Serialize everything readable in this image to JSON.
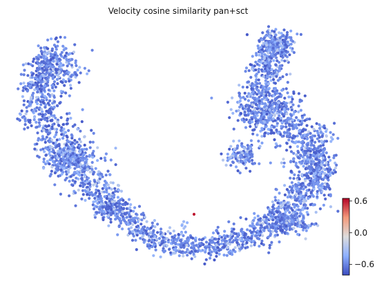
{
  "chart_data": {
    "type": "scatter",
    "title": "Velocity cosine similarity pan+sct",
    "xlabel": "",
    "ylabel": "",
    "axes_visible": false,
    "point_count_approx": 4000,
    "colormap": "coolwarm",
    "color_scale": {
      "min": -0.8,
      "max": 0.65,
      "ticks": [
        0.6,
        0.0,
        -0.6
      ],
      "tick_labels": [
        "0.6",
        "0.0",
        "−0.6"
      ]
    },
    "value_summary": {
      "typical_range": [
        -0.8,
        -0.3
      ],
      "outliers": [
        {
          "approx_value": 0.6,
          "note": "single red point near bottom center"
        }
      ]
    },
    "colors": {
      "low": "#3b4cc0",
      "mid": "#dddddd",
      "high": "#b40426"
    }
  }
}
